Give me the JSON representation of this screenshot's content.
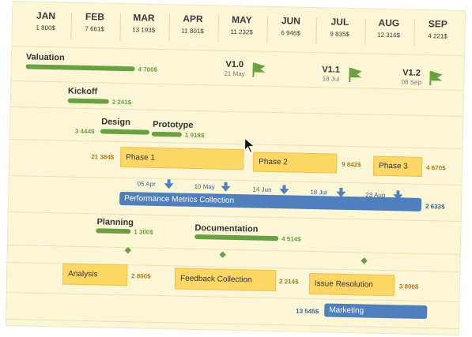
{
  "months": [
    {
      "name": "JAN",
      "value": "1 800$"
    },
    {
      "name": "FEB",
      "value": "7 661$"
    },
    {
      "name": "MAR",
      "value": "13 193$"
    },
    {
      "name": "APR",
      "value": "11 801$"
    },
    {
      "name": "MAY",
      "value": "11 232$"
    },
    {
      "name": "JUN",
      "value": "6 946$"
    },
    {
      "name": "JUL",
      "value": "9 835$"
    },
    {
      "name": "AUG",
      "value": "12 316$"
    },
    {
      "name": "SEP",
      "value": "4 221$"
    }
  ],
  "valuation": {
    "label": "Valuation",
    "value": "4 700$"
  },
  "milestones": [
    {
      "title": "V1.0",
      "date": "21 May"
    },
    {
      "title": "V1.1",
      "date": "18 Jul"
    },
    {
      "title": "V1.2",
      "date": "08 Sep"
    }
  ],
  "kickoff": {
    "label": "Kickoff",
    "value": "2 241$"
  },
  "design": {
    "label": "Design",
    "value": "3 444$"
  },
  "prototype": {
    "label": "Prototype",
    "value": "1 918$"
  },
  "phases": [
    {
      "label": "Phase 1",
      "value": "21 384$"
    },
    {
      "label": "Phase 2",
      "value": "9 842$"
    },
    {
      "label": "Phase 3",
      "value": "4 670$"
    }
  ],
  "perf_dates": [
    "05 Apr",
    "10 May",
    "14 Jun",
    "18 Jul",
    "23 Aug"
  ],
  "performance": {
    "label": "Performance Metrics Collection",
    "value": "2 633$"
  },
  "planning": {
    "label": "Planning",
    "value": "1 300$"
  },
  "documentation": {
    "label": "Documentation",
    "value": "4 514$"
  },
  "analysis": {
    "label": "Analysis",
    "value": "2 800$"
  },
  "feedback": {
    "label": "Feedback Collection",
    "value": "2 214$"
  },
  "issue": {
    "label": "Issue Resolution",
    "value": "3 800$"
  },
  "marketing": {
    "label": "Marketing",
    "value": "13 545$"
  },
  "colors": {
    "board": "#fbf6d6",
    "green": "#6aa042",
    "yellow": "#ffd766",
    "blue": "#4f7fbc"
  },
  "icons": {
    "milestone": "flag-icon",
    "date_marker": "arrow-down-icon",
    "checkpoint": "diamond-icon",
    "pointer": "mouse-cursor-icon"
  }
}
